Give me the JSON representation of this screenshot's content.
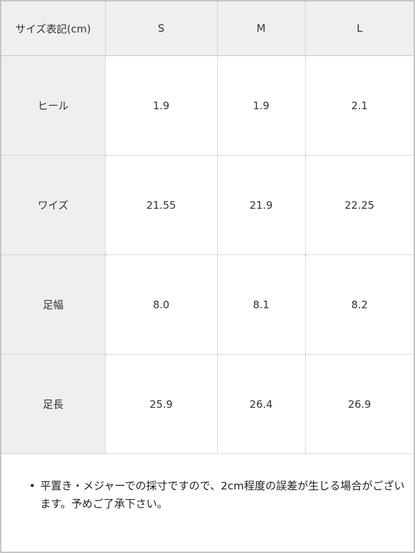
{
  "table": {
    "header": [
      "サイズ表記(cm)",
      "S",
      "M",
      "L"
    ],
    "rows": [
      {
        "label": "ヒール",
        "values": [
          "1.9",
          "1.9",
          "2.1"
        ]
      },
      {
        "label": "ワイズ",
        "values": [
          "21.55",
          "21.9",
          "22.25"
        ]
      },
      {
        "label": "足幅",
        "values": [
          "8.0",
          "8.1",
          "8.2"
        ]
      },
      {
        "label": "足長",
        "values": [
          "25.9",
          "26.4",
          "26.9"
        ]
      }
    ]
  },
  "note": {
    "bullet": "•",
    "text": "平置き・メジャーでの採寸ですので、2cm程度の誤差が生じる場合がございます。予めご了承下さい。"
  }
}
